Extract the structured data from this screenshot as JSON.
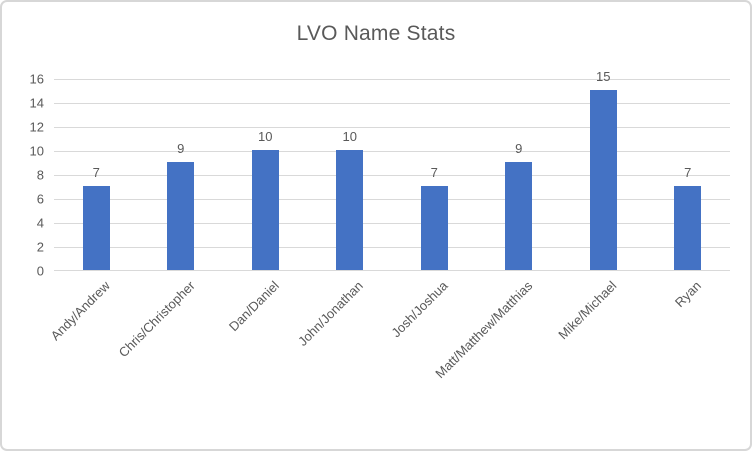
{
  "chart_data": {
    "type": "bar",
    "title": "LVO Name Stats",
    "categories": [
      "Andy/Andrew",
      "Chris/Christopher",
      "Dan/Daniel",
      "John/Jonathan",
      "Josh/Joshua",
      "Matt/Matthew/Matthias",
      "Mike/Michael",
      "Ryan"
    ],
    "values": [
      7,
      9,
      10,
      10,
      7,
      9,
      15,
      7
    ],
    "xlabel": "",
    "ylabel": "",
    "ylim": [
      0,
      16
    ],
    "yticks": [
      0,
      2,
      4,
      6,
      8,
      10,
      12,
      14,
      16
    ],
    "grid": true,
    "legend": false,
    "data_labels": true,
    "x_label_rotation_deg": 45
  },
  "colors": {
    "bar_fill": "#4472c4",
    "gridline": "#d9d9d9",
    "text": "#595959",
    "frame_border": "#d7d7d7",
    "background": "#ffffff"
  }
}
